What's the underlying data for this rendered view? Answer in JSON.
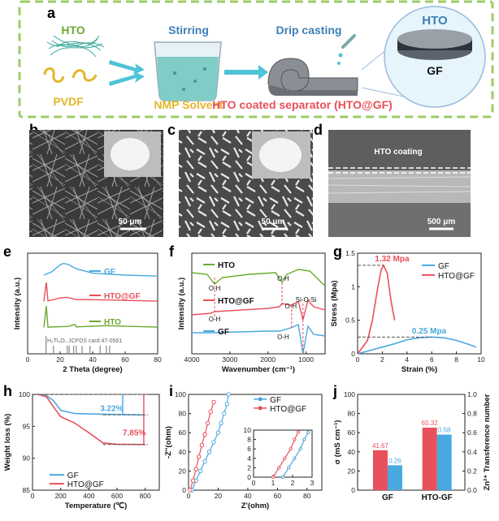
{
  "panel_a": {
    "label": "a",
    "hto": "HTO",
    "pvdf": "PVDF",
    "stirring": "Stirring",
    "solvent": "NMP Solvent",
    "drip": "Drip casting",
    "product": "HTO coated separator (HTO@GF)",
    "disc_top": "HTO",
    "disc_bottom": "GF"
  },
  "panel_b": {
    "label": "b",
    "scale": "50 μm"
  },
  "panel_c": {
    "label": "c",
    "scale": "50 μm"
  },
  "panel_d": {
    "label": "d",
    "coating": "HTO coating",
    "scale": "500 μm"
  },
  "chart_data": [
    {
      "panel": "e",
      "type": "line",
      "xlabel": "2 Theta (degree)",
      "ylabel": "Intensity (a.u.)",
      "xlim": [
        0,
        80
      ],
      "xticks": [
        0,
        20,
        40,
        60,
        80
      ],
      "series": [
        {
          "name": "GF",
          "color": "#4aa8e0",
          "points": [
            [
              10,
              0.5
            ],
            [
              15,
              1.2
            ],
            [
              20,
              2.6
            ],
            [
              22,
              2.9
            ],
            [
              25,
              2.7
            ],
            [
              30,
              1.8
            ],
            [
              40,
              0.9
            ],
            [
              60,
              0.5
            ],
            [
              80,
              0.3
            ]
          ]
        },
        {
          "name": "HTO@GF",
          "color": "#e8505b",
          "points": [
            [
              10,
              0.2
            ],
            [
              11.5,
              8
            ],
            [
              12.5,
              0.4
            ],
            [
              20,
              1.6
            ],
            [
              24,
              1.9
            ],
            [
              30,
              1.0
            ],
            [
              48,
              0.8
            ],
            [
              80,
              0.3
            ]
          ]
        },
        {
          "name": "HTO",
          "color": "#6aaa2e",
          "points": [
            [
              10,
              0.2
            ],
            [
              11.5,
              9
            ],
            [
              12.5,
              0.3
            ],
            [
              25,
              0.6
            ],
            [
              29,
              1.4
            ],
            [
              30,
              0.4
            ],
            [
              48,
              0.9
            ],
            [
              80,
              0.3
            ]
          ]
        }
      ],
      "reference": {
        "label": "H₂Ti₃O₇ JCPDS card:47-0561",
        "peaks": [
          11.3,
          15.9,
          24.4,
          25.6,
          28.3,
          29.9,
          33.5,
          38.4,
          44.6,
          48.4,
          50.4
        ]
      }
    },
    {
      "panel": "f",
      "type": "line",
      "xlabel": "Wavenumber (cm⁻¹)",
      "ylabel": "Intensity (a.u.)",
      "xlim": [
        4000,
        500
      ],
      "xticks": [
        4000,
        3000,
        2000,
        1000
      ],
      "series": [
        {
          "name": "HTO",
          "color": "#6aaa2e"
        },
        {
          "name": "HTO@GF",
          "color": "#e8505b"
        },
        {
          "name": "GF",
          "color": "#4aa8e0"
        }
      ],
      "annotations": [
        "O-H",
        "O-H",
        "O-H",
        "O-H",
        "Si-O-Si",
        "O-H"
      ]
    },
    {
      "panel": "g",
      "type": "line",
      "xlabel": "Strain (%)",
      "ylabel": "Stress (Mpa)",
      "xlim": [
        0,
        10
      ],
      "ylim": [
        0,
        1.5
      ],
      "xticks": [
        0,
        2,
        4,
        6,
        8,
        10
      ],
      "yticks": [
        0.0,
        0.5,
        1.0,
        1.5
      ],
      "series": [
        {
          "name": "GF",
          "color": "#4aa8e0",
          "points": [
            [
              0,
              0
            ],
            [
              1,
              0.05
            ],
            [
              2,
              0.1
            ],
            [
              3,
              0.15
            ],
            [
              4,
              0.21
            ],
            [
              5,
              0.24
            ],
            [
              6,
              0.25
            ],
            [
              7,
              0.24
            ],
            [
              8,
              0.2
            ],
            [
              9,
              0.14
            ],
            [
              9.6,
              0.1
            ]
          ]
        },
        {
          "name": "HTO@GF",
          "color": "#e8505b",
          "points": [
            [
              0,
              0
            ],
            [
              0.8,
              0.2
            ],
            [
              1.2,
              0.5
            ],
            [
              1.6,
              0.95
            ],
            [
              1.9,
              1.25
            ],
            [
              2.1,
              1.32
            ],
            [
              2.4,
              1.2
            ],
            [
              2.7,
              0.8
            ],
            [
              3,
              0.5
            ]
          ]
        }
      ],
      "peak_labels": [
        "1.32 Mpa",
        "0.25 Mpa"
      ]
    },
    {
      "panel": "h",
      "type": "line",
      "xlabel": "Temperature (℃)",
      "ylabel": "Weight loss (%)",
      "xlim": [
        0,
        900
      ],
      "ylim": [
        85,
        100
      ],
      "xticks": [
        0,
        200,
        400,
        600,
        800
      ],
      "yticks": [
        85,
        90,
        95,
        100
      ],
      "series": [
        {
          "name": "GF",
          "color": "#4aa8e0",
          "points": [
            [
              40,
              100
            ],
            [
              100,
              99.8
            ],
            [
              150,
              99
            ],
            [
              200,
              97.5
            ],
            [
              300,
              97
            ],
            [
              500,
              96.9
            ],
            [
              800,
              96.78
            ]
          ]
        },
        {
          "name": "HTO@GF",
          "color": "#e8505b",
          "points": [
            [
              40,
              100
            ],
            [
              100,
              99.6
            ],
            [
              150,
              98
            ],
            [
              200,
              96.5
            ],
            [
              300,
              95.5
            ],
            [
              400,
              94
            ],
            [
              500,
              92.4
            ],
            [
              600,
              92.2
            ],
            [
              800,
              92.15
            ]
          ]
        }
      ],
      "loss_labels": [
        "3.22%",
        "7.85%"
      ]
    },
    {
      "panel": "i",
      "type": "scatter",
      "xlabel": "Z'(ohm)",
      "ylabel": "-Z''(ohm)",
      "xlim": [
        0,
        90
      ],
      "ylim": [
        0,
        100
      ],
      "xticks": [
        0,
        20,
        40,
        60,
        80
      ],
      "yticks": [
        0,
        20,
        40,
        60,
        80,
        100
      ],
      "series": [
        {
          "name": "GF",
          "color": "#4aa8e0",
          "points": [
            [
              2.3,
              0
            ],
            [
              5,
              10
            ],
            [
              8,
              20
            ],
            [
              11,
              30
            ],
            [
              14,
              40
            ],
            [
              17,
              50
            ],
            [
              20,
              60
            ],
            [
              22,
              70
            ],
            [
              24,
              80
            ],
            [
              26,
              90
            ],
            [
              27,
              100
            ]
          ]
        },
        {
          "name": "HTO@GF",
          "color": "#e8505b",
          "points": [
            [
              1,
              0
            ],
            [
              3,
              10
            ],
            [
              5,
              22
            ],
            [
              7,
              35
            ],
            [
              9,
              47
            ],
            [
              11,
              58
            ],
            [
              13,
              70
            ],
            [
              15,
              82
            ],
            [
              17,
              92
            ]
          ]
        }
      ],
      "inset": {
        "xlim": [
          0,
          3
        ],
        "ylim": [
          0,
          10
        ],
        "xticks": [
          0,
          1,
          2,
          3
        ],
        "yticks": [
          0,
          2,
          4,
          6,
          8,
          10
        ]
      }
    },
    {
      "panel": "j",
      "type": "bar",
      "categories": [
        "GF",
        "HTO-GF"
      ],
      "ylabel": "σ (mS cm⁻¹)",
      "y2label": "Zn²⁺ Transference number",
      "ylim": [
        0,
        100
      ],
      "y2lim": [
        0,
        1.0
      ],
      "yticks": [
        0,
        20,
        40,
        60,
        80,
        100
      ],
      "y2ticks": [
        0.0,
        0.2,
        0.4,
        0.6,
        0.8,
        1.0
      ],
      "series": [
        {
          "name": "σ",
          "color": "#e8505b",
          "axis": "left",
          "values": [
            41.67,
            65.32
          ],
          "labels": [
            "41.67",
            "65.32"
          ]
        },
        {
          "name": "t",
          "color": "#4aa8e0",
          "axis": "right",
          "values": [
            0.26,
            0.58
          ],
          "labels": [
            "0.26",
            "0.58"
          ]
        }
      ]
    }
  ]
}
